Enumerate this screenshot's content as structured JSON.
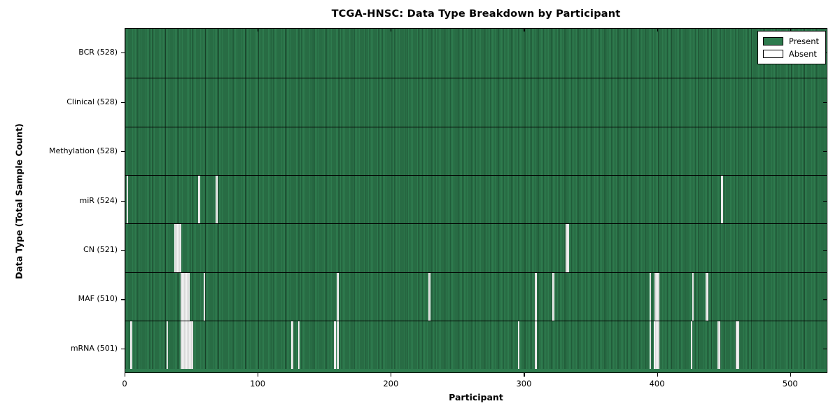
{
  "chart_data": {
    "type": "heatmap",
    "title": "TCGA-HNSC: Data Type Breakdown by Participant",
    "xlabel": "Participant",
    "ylabel": "Data Type (Total Sample Count)",
    "x_range": [
      0,
      528
    ],
    "n_participants": 528,
    "x_ticks": [
      0,
      100,
      200,
      300,
      400,
      500
    ],
    "grid": false,
    "legend_position": "upper right",
    "legend": [
      {
        "label": "Present",
        "color": "#2e7b4e"
      },
      {
        "label": "Absent",
        "color": "#ffffff"
      }
    ],
    "present_color": "#2e7b4e",
    "absent_color": "#ffffff",
    "rows": [
      {
        "label": "BCR (528)",
        "data_type": "BCR",
        "present_count": 528,
        "total": 528,
        "absent_participants": []
      },
      {
        "label": "Clinical (528)",
        "data_type": "Clinical",
        "present_count": 528,
        "total": 528,
        "absent_participants": []
      },
      {
        "label": "Methylation (528)",
        "data_type": "Methylation",
        "present_count": 528,
        "total": 528,
        "absent_participants": []
      },
      {
        "label": "miR (524)",
        "data_type": "miR",
        "present_count": 524,
        "total": 528,
        "absent_participants": [
          1,
          55,
          68,
          448
        ]
      },
      {
        "label": "CN (521)",
        "data_type": "CN",
        "present_count": 521,
        "total": 528,
        "absent_participants": [
          37,
          38,
          39,
          40,
          41,
          331,
          332
        ]
      },
      {
        "label": "MAF (510)",
        "data_type": "MAF",
        "present_count": 510,
        "total": 528,
        "absent_participants": [
          42,
          43,
          44,
          45,
          46,
          47,
          59,
          159,
          228,
          308,
          321,
          394,
          398,
          399,
          400,
          426,
          436,
          437
        ]
      },
      {
        "label": "mRNA (501)",
        "data_type": "mRNA",
        "present_count": 501,
        "total": 528,
        "absent_participants": [
          4,
          31,
          42,
          43,
          44,
          45,
          46,
          47,
          48,
          49,
          50,
          125,
          130,
          157,
          159,
          295,
          308,
          394,
          397,
          398,
          399,
          400,
          425,
          445,
          446,
          459,
          460
        ]
      }
    ]
  }
}
